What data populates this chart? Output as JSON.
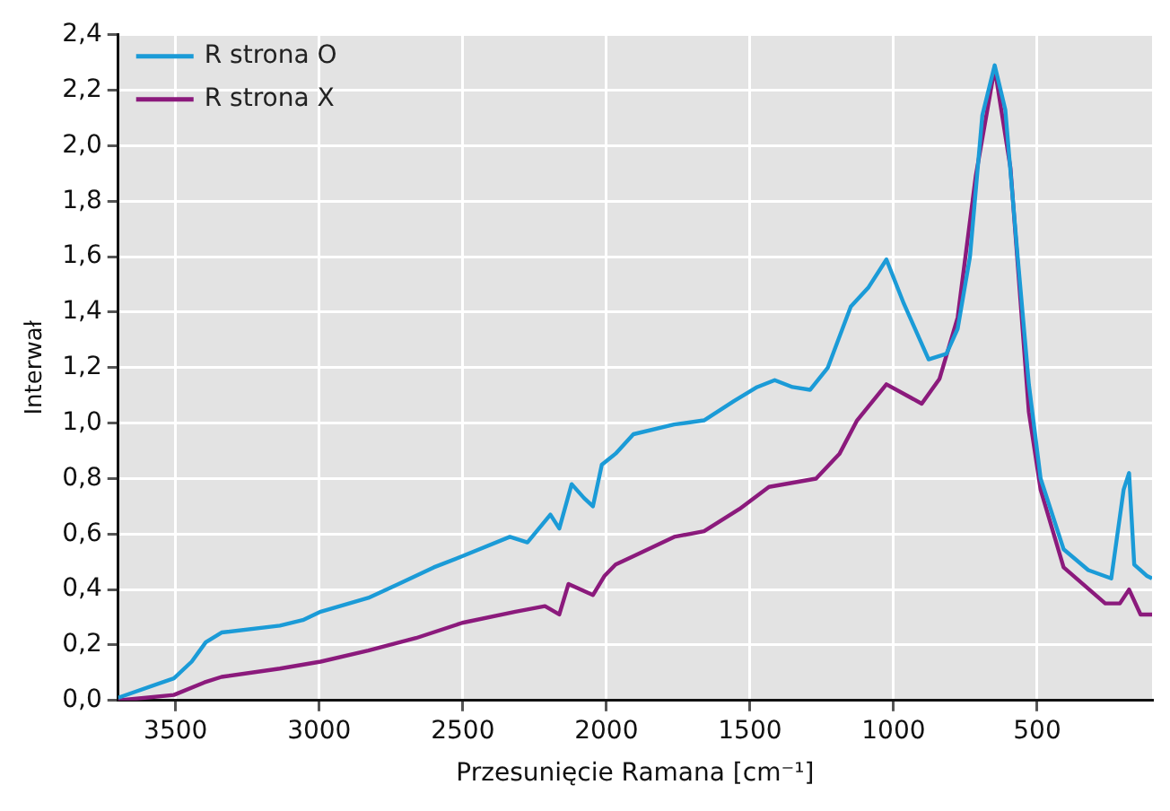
{
  "chart_data": {
    "type": "line",
    "xlabel": "Przesunięcie Ramana [cm⁻¹]",
    "ylabel": "Interwał",
    "xlim": [
      3700,
      100
    ],
    "xticks": [
      3500,
      3000,
      2500,
      2000,
      1500,
      1000,
      500
    ],
    "ylim": [
      0,
      2.4
    ],
    "yticks": [
      {
        "value": 0,
        "label": "0,0"
      },
      {
        "value": 0.2,
        "label": "0,2"
      },
      {
        "value": 0.4,
        "label": "0,4"
      },
      {
        "value": 0.6,
        "label": "0,6"
      },
      {
        "value": 0.8,
        "label": "0,8"
      },
      {
        "value": 1.0,
        "label": "1,0"
      },
      {
        "value": 1.2,
        "label": "1,2"
      },
      {
        "value": 1.4,
        "label": "1,4"
      },
      {
        "value": 1.6,
        "label": "1,6"
      },
      {
        "value": 1.8,
        "label": "1,8"
      },
      {
        "value": 2.0,
        "label": "2,0"
      },
      {
        "value": 2.2,
        "label": "2,2"
      },
      {
        "value": 2.4,
        "label": "2,4"
      }
    ],
    "grid": true,
    "legend": "top left",
    "series": [
      {
        "name": "R strona O",
        "color": "#1b9bd7",
        "x": [
          3700,
          3506,
          3444,
          3395,
          3340,
          3137,
          3057,
          2995,
          2829,
          2724,
          2601,
          2502,
          2336,
          2275,
          2195,
          2164,
          2121,
          2078,
          2047,
          2016,
          1968,
          1906,
          1764,
          1660,
          1555,
          1475,
          1414,
          1352,
          1291,
          1229,
          1149,
          1087,
          1025,
          964,
          878,
          816,
          777,
          734,
          691,
          648,
          611,
          568,
          529,
          488,
          408,
          322,
          242,
          199,
          180,
          162,
          119,
          100
        ],
        "values": [
          0.01,
          0.08,
          0.14,
          0.21,
          0.245,
          0.27,
          0.29,
          0.32,
          0.37,
          0.42,
          0.48,
          0.52,
          0.59,
          0.57,
          0.67,
          0.62,
          0.78,
          0.73,
          0.7,
          0.85,
          0.89,
          0.96,
          0.995,
          1.01,
          1.08,
          1.13,
          1.155,
          1.13,
          1.12,
          1.2,
          1.42,
          1.49,
          1.59,
          1.43,
          1.23,
          1.25,
          1.34,
          1.6,
          2.11,
          2.29,
          2.13,
          1.6,
          1.14,
          0.8,
          0.545,
          0.47,
          0.44,
          0.76,
          0.82,
          0.49,
          0.45,
          0.44
        ]
      },
      {
        "name": "R strona X",
        "color": "#8b1a7c",
        "x": [
          3700,
          3506,
          3400,
          3340,
          3137,
          2995,
          2829,
          2663,
          2502,
          2317,
          2214,
          2164,
          2132,
          2047,
          2006,
          1968,
          1906,
          1764,
          1660,
          1537,
          1434,
          1270,
          1188,
          1127,
          1025,
          902,
          840,
          777,
          714,
          648,
          593,
          529,
          488,
          408,
          263,
          212,
          180,
          140,
          100
        ],
        "values": [
          0.0,
          0.02,
          0.065,
          0.085,
          0.115,
          0.14,
          0.18,
          0.225,
          0.28,
          0.32,
          0.34,
          0.31,
          0.42,
          0.38,
          0.45,
          0.49,
          0.52,
          0.59,
          0.61,
          0.69,
          0.77,
          0.8,
          0.89,
          1.01,
          1.14,
          1.07,
          1.16,
          1.38,
          1.89,
          2.28,
          1.92,
          1.04,
          0.76,
          0.48,
          0.35,
          0.35,
          0.4,
          0.31,
          0.31
        ]
      }
    ]
  }
}
